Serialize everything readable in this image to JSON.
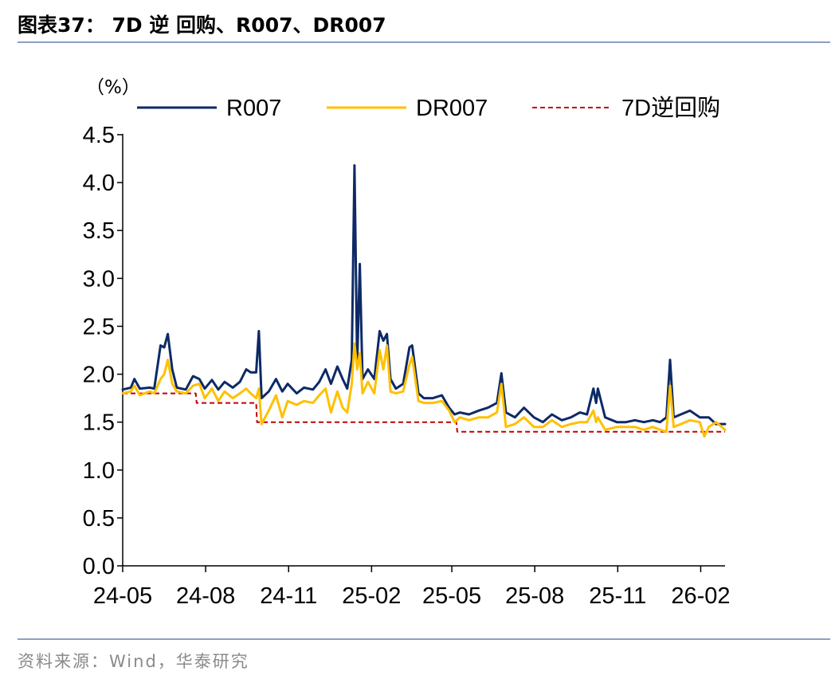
{
  "header": {
    "title": "图表37：  7D 逆 回购、R007、DR007"
  },
  "footer": {
    "source": "资料来源：Wind，华泰研究"
  },
  "chart_data": {
    "type": "line",
    "unit_label": "（%）",
    "ylim": [
      0,
      4.5
    ],
    "yticks": [
      "0.0",
      "0.5",
      "1.0",
      "1.5",
      "2.0",
      "2.5",
      "3.0",
      "3.5",
      "4.0",
      "4.5"
    ],
    "xticks": [
      "24-05",
      "24-08",
      "24-11",
      "25-02",
      "25-05",
      "25-08",
      "25-11",
      "26-02"
    ],
    "x_start": "2024-05-01",
    "x_end": "2026-02-28",
    "grid": false,
    "legend_position": "top",
    "colors": {
      "R007": "#0d2a66",
      "DR007": "#ffc000",
      "7D逆回购": "#c00000"
    },
    "series": [
      {
        "name": "R007",
        "style": "solid",
        "points": [
          [
            "2024-05-01",
            1.84
          ],
          [
            "2024-05-10",
            1.86
          ],
          [
            "2024-05-14",
            1.95
          ],
          [
            "2024-05-20",
            1.85
          ],
          [
            "2024-05-31",
            1.86
          ],
          [
            "2024-06-05",
            1.85
          ],
          [
            "2024-06-12",
            2.3
          ],
          [
            "2024-06-16",
            2.28
          ],
          [
            "2024-06-20",
            2.42
          ],
          [
            "2024-06-25",
            2.05
          ],
          [
            "2024-06-30",
            1.86
          ],
          [
            "2024-07-10",
            1.84
          ],
          [
            "2024-07-18",
            1.98
          ],
          [
            "2024-07-25",
            1.95
          ],
          [
            "2024-07-31",
            1.85
          ],
          [
            "2024-08-08",
            1.94
          ],
          [
            "2024-08-15",
            1.84
          ],
          [
            "2024-08-22",
            1.92
          ],
          [
            "2024-08-31",
            1.86
          ],
          [
            "2024-09-08",
            1.92
          ],
          [
            "2024-09-15",
            2.05
          ],
          [
            "2024-09-20",
            2.02
          ],
          [
            "2024-09-26",
            2.02
          ],
          [
            "2024-09-29",
            2.45
          ],
          [
            "2024-10-02",
            1.75
          ],
          [
            "2024-10-10",
            1.82
          ],
          [
            "2024-10-18",
            1.95
          ],
          [
            "2024-10-25",
            1.82
          ],
          [
            "2024-10-31",
            1.9
          ],
          [
            "2024-11-10",
            1.8
          ],
          [
            "2024-11-18",
            1.86
          ],
          [
            "2024-11-28",
            1.84
          ],
          [
            "2024-12-05",
            1.92
          ],
          [
            "2024-12-12",
            2.05
          ],
          [
            "2024-12-18",
            1.9
          ],
          [
            "2024-12-25",
            2.08
          ],
          [
            "2024-12-31",
            1.95
          ],
          [
            "2025-01-05",
            1.85
          ],
          [
            "2025-01-10",
            2.15
          ],
          [
            "2025-01-13",
            4.18
          ],
          [
            "2025-01-16",
            2.1
          ],
          [
            "2025-01-19",
            3.15
          ],
          [
            "2025-01-22",
            1.95
          ],
          [
            "2025-01-28",
            2.05
          ],
          [
            "2025-02-04",
            1.95
          ],
          [
            "2025-02-10",
            2.45
          ],
          [
            "2025-02-14",
            2.35
          ],
          [
            "2025-02-18",
            2.42
          ],
          [
            "2025-02-22",
            1.95
          ],
          [
            "2025-02-28",
            1.85
          ],
          [
            "2025-03-08",
            1.9
          ],
          [
            "2025-03-15",
            2.28
          ],
          [
            "2025-03-18",
            2.3
          ],
          [
            "2025-03-25",
            1.8
          ],
          [
            "2025-03-31",
            1.75
          ],
          [
            "2025-04-10",
            1.75
          ],
          [
            "2025-04-20",
            1.78
          ],
          [
            "2025-04-28",
            1.65
          ],
          [
            "2025-05-04",
            1.58
          ],
          [
            "2025-05-10",
            1.6
          ],
          [
            "2025-05-20",
            1.58
          ],
          [
            "2025-05-31",
            1.62
          ],
          [
            "2025-06-10",
            1.65
          ],
          [
            "2025-06-20",
            1.7
          ],
          [
            "2025-06-25",
            2.01
          ],
          [
            "2025-06-30",
            1.6
          ],
          [
            "2025-07-10",
            1.55
          ],
          [
            "2025-07-20",
            1.65
          ],
          [
            "2025-07-31",
            1.55
          ],
          [
            "2025-08-10",
            1.5
          ],
          [
            "2025-08-20",
            1.58
          ],
          [
            "2025-08-31",
            1.52
          ],
          [
            "2025-09-10",
            1.55
          ],
          [
            "2025-09-20",
            1.6
          ],
          [
            "2025-09-28",
            1.58
          ],
          [
            "2025-10-05",
            1.85
          ],
          [
            "2025-10-08",
            1.7
          ],
          [
            "2025-10-10",
            1.85
          ],
          [
            "2025-10-18",
            1.55
          ],
          [
            "2025-10-31",
            1.5
          ],
          [
            "2025-11-10",
            1.5
          ],
          [
            "2025-11-20",
            1.52
          ],
          [
            "2025-11-30",
            1.5
          ],
          [
            "2025-12-10",
            1.52
          ],
          [
            "2025-12-18",
            1.5
          ],
          [
            "2025-12-25",
            1.55
          ],
          [
            "2025-12-29",
            2.15
          ],
          [
            "2026-01-02",
            1.55
          ],
          [
            "2026-01-10",
            1.58
          ],
          [
            "2026-01-20",
            1.62
          ],
          [
            "2026-01-31",
            1.55
          ],
          [
            "2026-02-10",
            1.55
          ],
          [
            "2026-02-18",
            1.48
          ],
          [
            "2026-02-28",
            1.48
          ]
        ]
      },
      {
        "name": "DR007",
        "style": "solid",
        "points": [
          [
            "2024-05-01",
            1.8
          ],
          [
            "2024-05-10",
            1.82
          ],
          [
            "2024-05-14",
            1.88
          ],
          [
            "2024-05-20",
            1.78
          ],
          [
            "2024-05-31",
            1.82
          ],
          [
            "2024-06-05",
            1.8
          ],
          [
            "2024-06-12",
            1.95
          ],
          [
            "2024-06-16",
            2.0
          ],
          [
            "2024-06-20",
            2.15
          ],
          [
            "2024-06-25",
            1.9
          ],
          [
            "2024-06-30",
            1.82
          ],
          [
            "2024-07-10",
            1.8
          ],
          [
            "2024-07-18",
            1.88
          ],
          [
            "2024-07-25",
            1.9
          ],
          [
            "2024-07-31",
            1.75
          ],
          [
            "2024-08-08",
            1.85
          ],
          [
            "2024-08-15",
            1.72
          ],
          [
            "2024-08-22",
            1.82
          ],
          [
            "2024-08-31",
            1.75
          ],
          [
            "2024-09-08",
            1.8
          ],
          [
            "2024-09-15",
            1.85
          ],
          [
            "2024-09-20",
            1.8
          ],
          [
            "2024-09-26",
            1.75
          ],
          [
            "2024-09-29",
            1.85
          ],
          [
            "2024-10-02",
            1.48
          ],
          [
            "2024-10-10",
            1.62
          ],
          [
            "2024-10-18",
            1.78
          ],
          [
            "2024-10-25",
            1.55
          ],
          [
            "2024-10-31",
            1.72
          ],
          [
            "2024-11-10",
            1.68
          ],
          [
            "2024-11-18",
            1.72
          ],
          [
            "2024-11-28",
            1.7
          ],
          [
            "2024-12-05",
            1.78
          ],
          [
            "2024-12-12",
            1.85
          ],
          [
            "2024-12-18",
            1.6
          ],
          [
            "2024-12-25",
            1.82
          ],
          [
            "2024-12-31",
            1.65
          ],
          [
            "2025-01-05",
            1.6
          ],
          [
            "2025-01-10",
            1.9
          ],
          [
            "2025-01-13",
            2.32
          ],
          [
            "2025-01-16",
            2.05
          ],
          [
            "2025-01-19",
            2.22
          ],
          [
            "2025-01-22",
            1.8
          ],
          [
            "2025-01-28",
            1.92
          ],
          [
            "2025-02-04",
            1.8
          ],
          [
            "2025-02-10",
            2.25
          ],
          [
            "2025-02-14",
            2.05
          ],
          [
            "2025-02-18",
            2.3
          ],
          [
            "2025-02-22",
            1.82
          ],
          [
            "2025-02-28",
            1.8
          ],
          [
            "2025-03-08",
            1.82
          ],
          [
            "2025-03-15",
            2.1
          ],
          [
            "2025-03-18",
            2.18
          ],
          [
            "2025-03-25",
            1.72
          ],
          [
            "2025-03-31",
            1.7
          ],
          [
            "2025-04-10",
            1.7
          ],
          [
            "2025-04-20",
            1.72
          ],
          [
            "2025-04-28",
            1.62
          ],
          [
            "2025-05-04",
            1.5
          ],
          [
            "2025-05-10",
            1.55
          ],
          [
            "2025-05-20",
            1.52
          ],
          [
            "2025-05-31",
            1.55
          ],
          [
            "2025-06-10",
            1.55
          ],
          [
            "2025-06-20",
            1.6
          ],
          [
            "2025-06-25",
            1.9
          ],
          [
            "2025-06-30",
            1.45
          ],
          [
            "2025-07-10",
            1.48
          ],
          [
            "2025-07-20",
            1.55
          ],
          [
            "2025-07-31",
            1.45
          ],
          [
            "2025-08-10",
            1.45
          ],
          [
            "2025-08-20",
            1.52
          ],
          [
            "2025-08-31",
            1.45
          ],
          [
            "2025-09-10",
            1.48
          ],
          [
            "2025-09-20",
            1.5
          ],
          [
            "2025-09-28",
            1.5
          ],
          [
            "2025-10-05",
            1.62
          ],
          [
            "2025-10-08",
            1.5
          ],
          [
            "2025-10-10",
            1.55
          ],
          [
            "2025-10-18",
            1.42
          ],
          [
            "2025-10-31",
            1.45
          ],
          [
            "2025-11-10",
            1.45
          ],
          [
            "2025-11-20",
            1.45
          ],
          [
            "2025-11-30",
            1.42
          ],
          [
            "2025-12-10",
            1.45
          ],
          [
            "2025-12-18",
            1.42
          ],
          [
            "2025-12-25",
            1.4
          ],
          [
            "2025-12-29",
            1.88
          ],
          [
            "2026-01-02",
            1.45
          ],
          [
            "2026-01-10",
            1.48
          ],
          [
            "2026-01-20",
            1.52
          ],
          [
            "2026-01-31",
            1.5
          ],
          [
            "2026-02-05",
            1.35
          ],
          [
            "2026-02-10",
            1.45
          ],
          [
            "2026-02-18",
            1.5
          ],
          [
            "2026-02-28",
            1.42
          ]
        ]
      },
      {
        "name": "7D逆回购",
        "style": "dashed",
        "points": [
          [
            "2024-05-01",
            1.8
          ],
          [
            "2024-07-21",
            1.8
          ],
          [
            "2024-07-22",
            1.7
          ],
          [
            "2024-09-26",
            1.7
          ],
          [
            "2024-09-27",
            1.5
          ],
          [
            "2025-05-06",
            1.5
          ],
          [
            "2025-05-07",
            1.4
          ],
          [
            "2026-02-28",
            1.4
          ]
        ]
      }
    ]
  }
}
